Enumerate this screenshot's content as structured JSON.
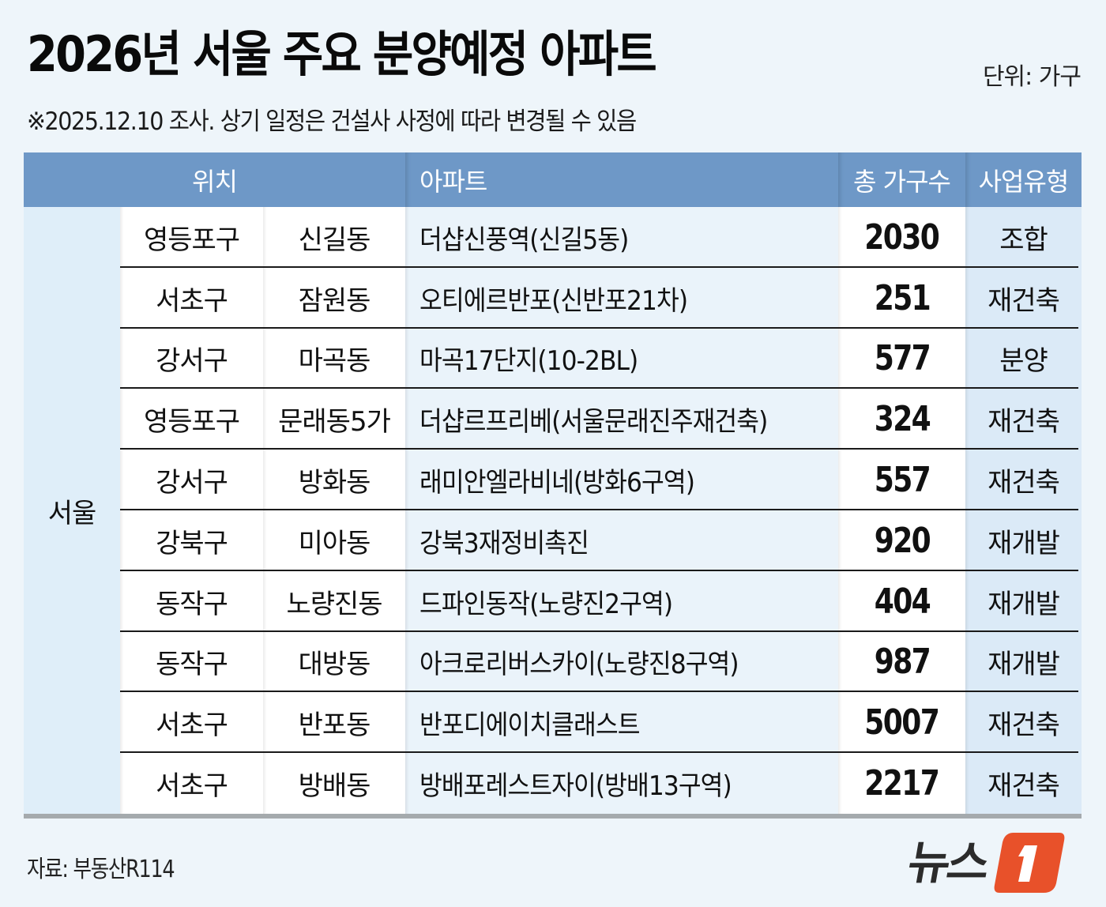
{
  "header": {
    "title": "2026년 서울 주요 분양예정 아파트",
    "unit": "단위: 가구",
    "note": "※2025.12.10 조사. 상기 일정은 건설사 사정에 따라 변경될 수 있음"
  },
  "table": {
    "columns": {
      "location": "위치",
      "apartment": "아파트",
      "households": "총 가구수",
      "type": "사업유형"
    },
    "region": "서울",
    "rows": [
      {
        "gu": "영등포구",
        "dong": "신길동",
        "apartment": "더샵신풍역(신길5동)",
        "households": "2030",
        "type": "조합"
      },
      {
        "gu": "서초구",
        "dong": "잠원동",
        "apartment": "오티에르반포(신반포21차)",
        "households": "251",
        "type": "재건축"
      },
      {
        "gu": "강서구",
        "dong": "마곡동",
        "apartment": "마곡17단지(10-2BL)",
        "households": "577",
        "type": "분양"
      },
      {
        "gu": "영등포구",
        "dong": "문래동5가",
        "apartment": "더샵르프리베(서울문래진주재건축)",
        "households": "324",
        "type": "재건축"
      },
      {
        "gu": "강서구",
        "dong": "방화동",
        "apartment": "래미안엘라비네(방화6구역)",
        "households": "557",
        "type": "재건축"
      },
      {
        "gu": "강북구",
        "dong": "미아동",
        "apartment": "강북3재정비촉진",
        "households": "920",
        "type": "재개발"
      },
      {
        "gu": "동작구",
        "dong": "노량진동",
        "apartment": "드파인동작(노량진2구역)",
        "households": "404",
        "type": "재개발"
      },
      {
        "gu": "동작구",
        "dong": "대방동",
        "apartment": "아크로리버스카이(노량진8구역)",
        "households": "987",
        "type": "재개발"
      },
      {
        "gu": "서초구",
        "dong": "반포동",
        "apartment": "반포디에이치클래스트",
        "households": "5007",
        "type": "재건축"
      },
      {
        "gu": "서초구",
        "dong": "방배동",
        "apartment": "방배포레스트자이(방배13구역)",
        "households": "2217",
        "type": "재건축"
      }
    ]
  },
  "footer": {
    "source": "자료: 부동산R114",
    "logo_text": "뉴스",
    "logo_mark": "1"
  },
  "colors": {
    "background": "#eef5fa",
    "header_bar": "#6e98c7",
    "region_cell": "#dfeef9",
    "apartment_cell": "#eaf3fa",
    "type_cell": "#dbeaf7",
    "logo_orange": "#e8512a",
    "logo_dark": "#2b2b2b"
  }
}
